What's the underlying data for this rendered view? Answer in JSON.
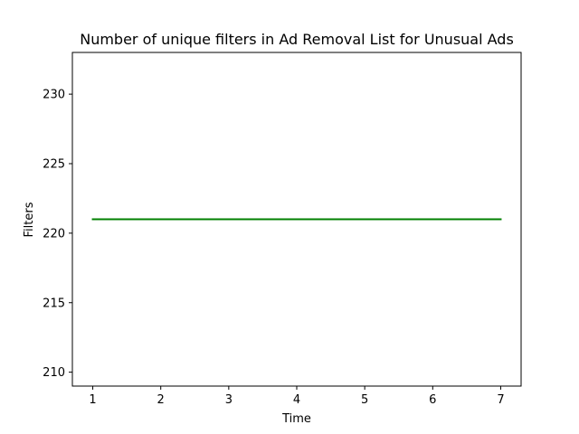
{
  "chart_data": {
    "type": "line",
    "title": "Number of unique filters in Ad Removal List for Unusual Ads",
    "xlabel": "Time",
    "ylabel": "Filters",
    "x": [
      1,
      2,
      3,
      4,
      5,
      6,
      7
    ],
    "series": [
      {
        "values": [
          221,
          221,
          221,
          221,
          221,
          221,
          221
        ],
        "color": "#008000"
      }
    ],
    "xlim": [
      0.7,
      7.3
    ],
    "ylim": [
      209,
      233
    ],
    "x_ticks": [
      1,
      2,
      3,
      4,
      5,
      6,
      7
    ],
    "y_ticks": [
      210,
      215,
      220,
      225,
      230
    ],
    "grid": false,
    "legend": "none"
  }
}
